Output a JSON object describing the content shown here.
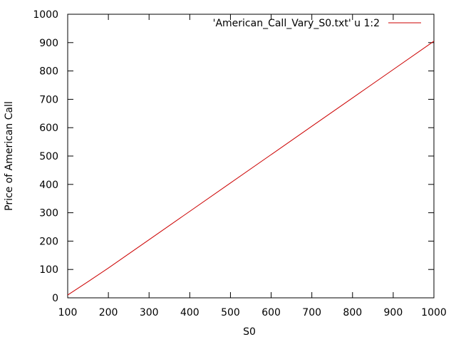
{
  "chart_data": {
    "type": "line",
    "xlabel": "S0",
    "ylabel": "Price of American Call",
    "xlim": [
      100,
      1000
    ],
    "ylim": [
      0,
      1000
    ],
    "xticks": [
      100,
      200,
      300,
      400,
      500,
      600,
      700,
      800,
      900,
      1000
    ],
    "yticks": [
      0,
      100,
      200,
      300,
      400,
      500,
      600,
      700,
      800,
      900,
      1000
    ],
    "grid": false,
    "legend_position": "top-right",
    "series": [
      {
        "name": "'American_Call_Vary_S0.txt' u 1:2",
        "color": "#cc0000",
        "x": [
          100,
          150,
          200,
          300,
          400,
          500,
          600,
          700,
          800,
          900,
          1000
        ],
        "y": [
          10,
          57,
          105,
          205,
          305,
          405,
          505,
          605,
          705,
          805,
          905
        ]
      }
    ]
  }
}
